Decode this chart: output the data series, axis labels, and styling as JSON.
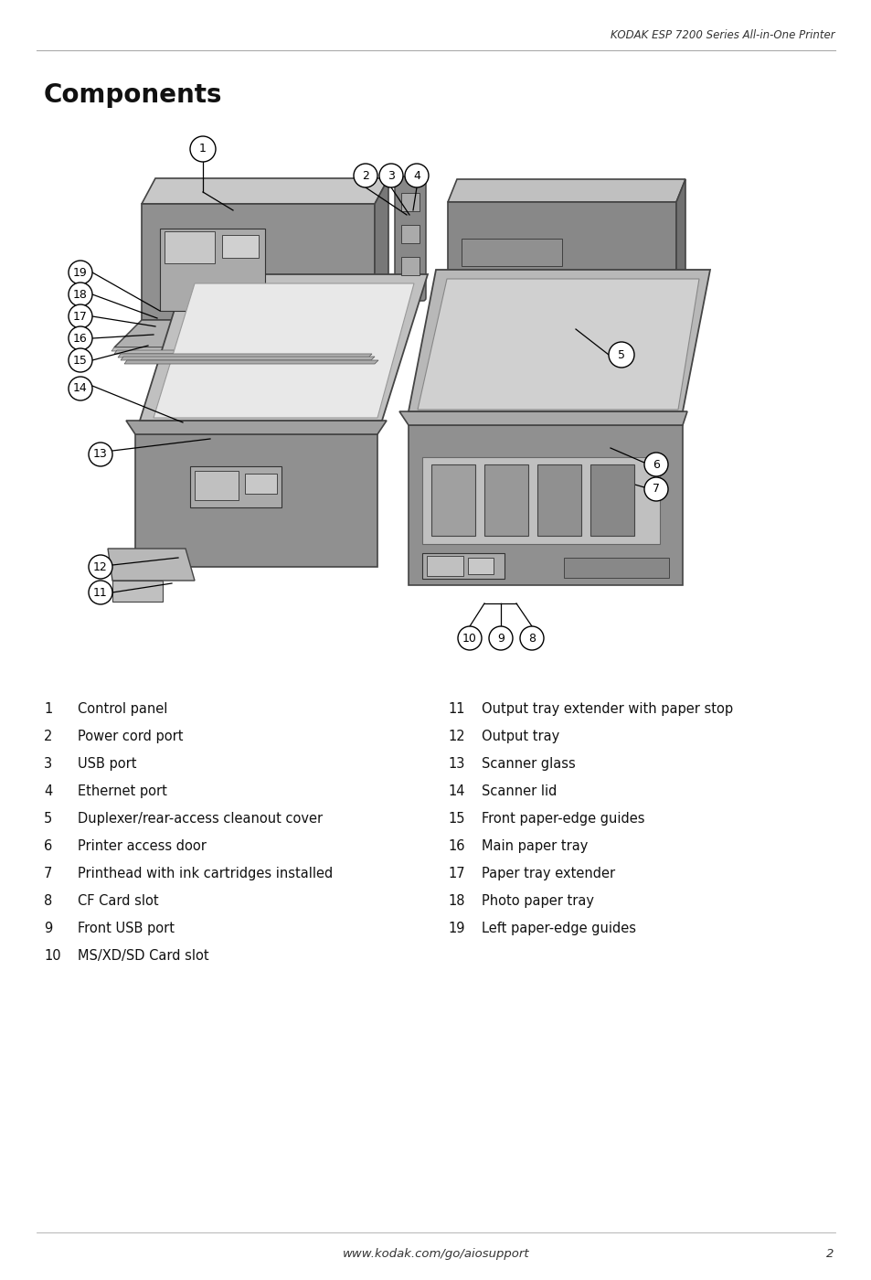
{
  "header_text": "KODAK ESP 7200 Series All-in-One Printer",
  "title": "Components",
  "footer_url": "www.kodak.com/go/aiosupport",
  "footer_page": "2",
  "bg_color": "#ffffff",
  "line_color": "#aaaaaa",
  "items_left": [
    {
      "num": "1",
      "desc": "Control panel"
    },
    {
      "num": "2",
      "desc": "Power cord port"
    },
    {
      "num": "3",
      "desc": "USB port"
    },
    {
      "num": "4",
      "desc": "Ethernet port"
    },
    {
      "num": "5",
      "desc": "Duplexer/rear-access cleanout cover"
    },
    {
      "num": "6",
      "desc": "Printer access door"
    },
    {
      "num": "7",
      "desc": "Printhead with ink cartridges installed"
    },
    {
      "num": "8",
      "desc": "CF Card slot"
    },
    {
      "num": "9",
      "desc": "Front USB port"
    },
    {
      "num": "10",
      "desc": "MS/XD/SD Card slot"
    }
  ],
  "items_right": [
    {
      "num": "11",
      "desc": "Output tray extender with paper stop"
    },
    {
      "num": "12",
      "desc": "Output tray"
    },
    {
      "num": "13",
      "desc": "Scanner glass"
    },
    {
      "num": "14",
      "desc": "Scanner lid"
    },
    {
      "num": "15",
      "desc": "Front paper-edge guides"
    },
    {
      "num": "16",
      "desc": "Main paper tray"
    },
    {
      "num": "17",
      "desc": "Paper tray extender"
    },
    {
      "num": "18",
      "desc": "Photo paper tray"
    },
    {
      "num": "19",
      "desc": "Left paper-edge guides"
    }
  ],
  "header_fontsize": 8.5,
  "title_fontsize": 20,
  "item_num_fontsize": 10.5,
  "item_desc_fontsize": 10.5,
  "footer_fontsize": 9.5,
  "callout_fontsize": 9,
  "callout_r": 12
}
